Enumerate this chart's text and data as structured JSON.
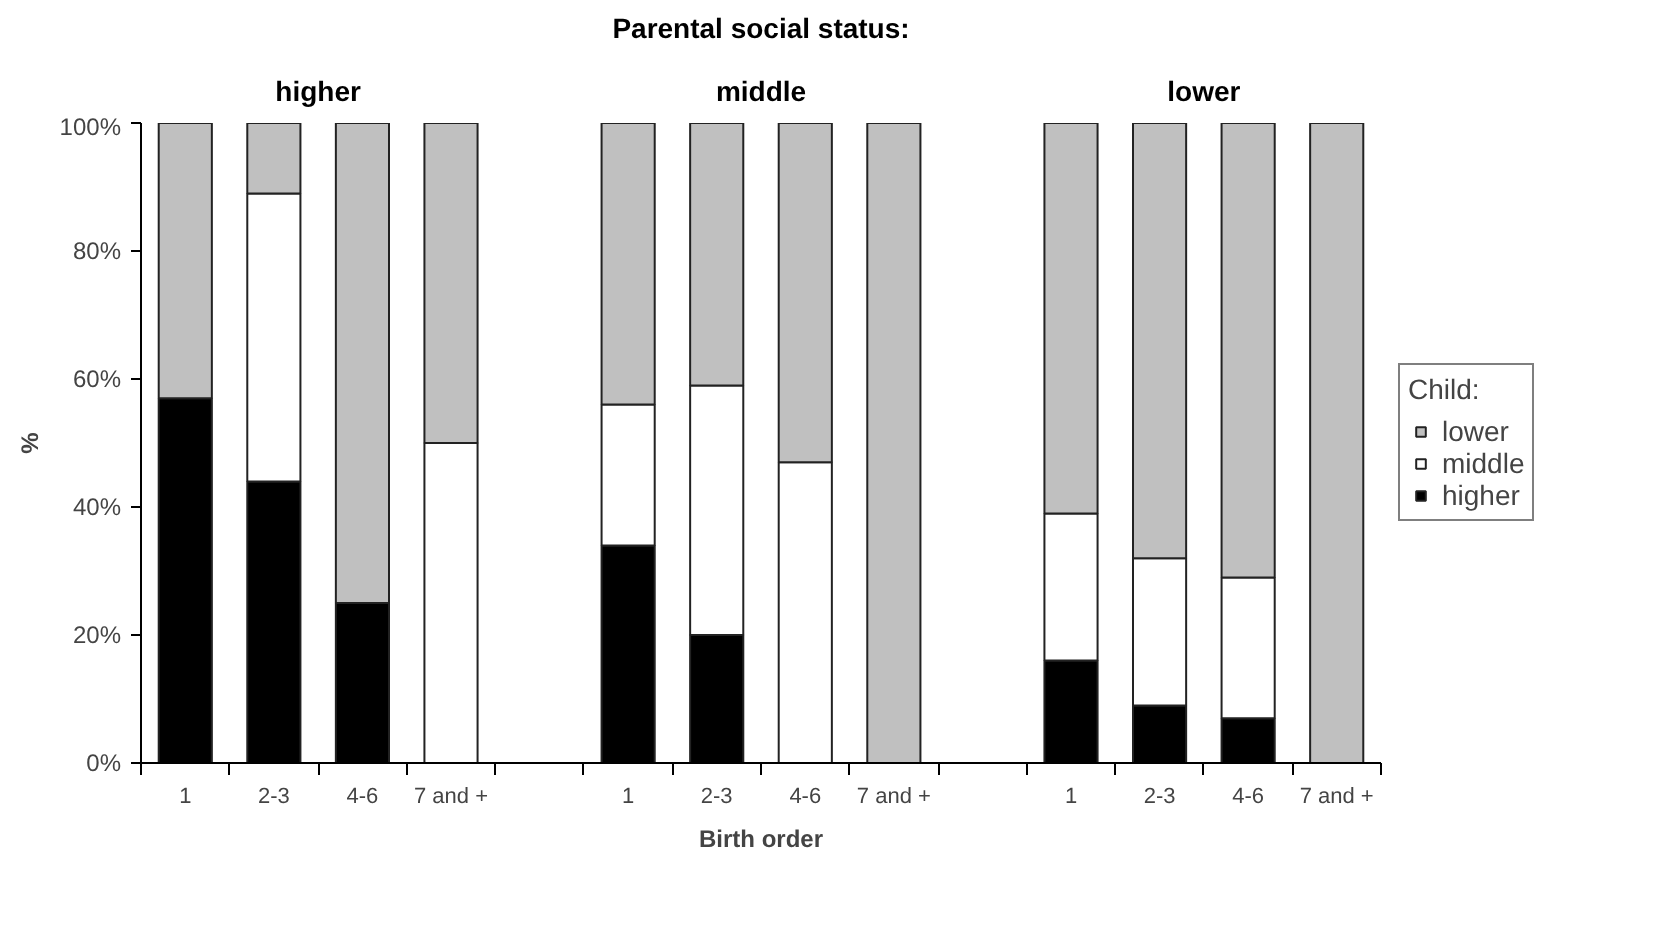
{
  "chart_data": {
    "type": "bar",
    "stacked": true,
    "title": "Parental social status:",
    "xlabel": "Birth order",
    "ylabel": "%",
    "legend_title": "Child:",
    "legend": "right",
    "categories": [
      "1",
      "2-3",
      "4-6",
      "7 and +",
      null,
      "1",
      "2-3",
      "4-6",
      "7 and +",
      null,
      "1",
      "2-3",
      "4-6",
      "7 and +"
    ],
    "series": [
      {
        "name": "higher",
        "color": "#000000",
        "values": [
          57,
          44,
          25,
          0,
          null,
          34,
          20,
          0,
          0,
          null,
          16,
          9,
          7,
          0
        ]
      },
      {
        "name": "middle",
        "color": "#ffffff",
        "values": [
          0,
          45,
          0,
          50,
          null,
          22,
          39,
          47,
          0,
          null,
          23,
          23,
          22,
          0
        ]
      },
      {
        "name": "lower",
        "color": "#c0c0c0",
        "values": [
          43,
          11,
          75,
          50,
          null,
          44,
          41,
          53,
          100,
          null,
          61,
          68,
          71,
          100
        ]
      }
    ],
    "annotations": [
      "higher",
      "middle",
      "lower"
    ],
    "ylim": [
      0,
      100
    ],
    "yticks": [
      {
        "value": 0,
        "label": "0%"
      },
      {
        "value": 20,
        "label": "20%"
      },
      {
        "value": 40,
        "label": "40%"
      },
      {
        "value": 60,
        "label": "60%"
      },
      {
        "value": 80,
        "label": "80%"
      },
      {
        "value": 100,
        "label": "100%"
      }
    ]
  }
}
